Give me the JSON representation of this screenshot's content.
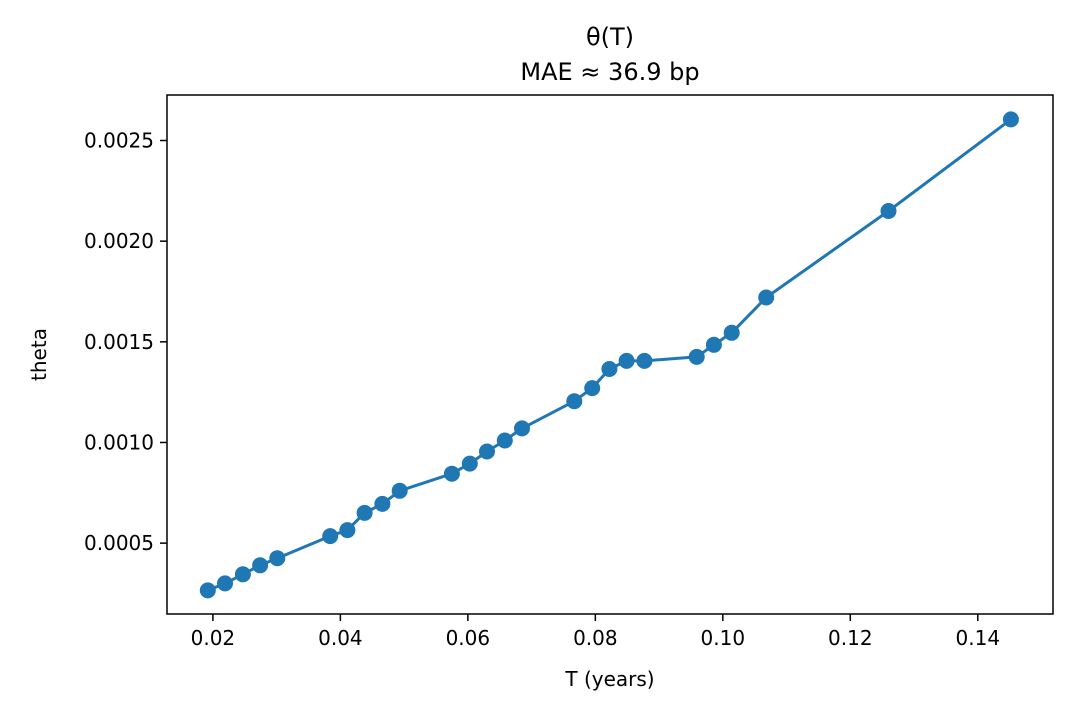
{
  "chart_data": {
    "type": "line",
    "title": "θ(T)",
    "subtitle": "MAE ≈ 36.9 bp",
    "xlabel": "T (years)",
    "ylabel": "theta",
    "xlim": [
      0.0128,
      0.1518
    ],
    "ylim": [
      0.000148,
      0.002726
    ],
    "xticks": [
      0.02,
      0.04,
      0.06,
      0.08,
      0.1,
      0.12,
      0.14
    ],
    "xtick_labels": [
      "0.02",
      "0.04",
      "0.06",
      "0.08",
      "0.10",
      "0.12",
      "0.14"
    ],
    "yticks": [
      0.0005,
      0.001,
      0.0015,
      0.002,
      0.0025
    ],
    "ytick_labels": [
      "0.0005",
      "0.0010",
      "0.0015",
      "0.0020",
      "0.0025"
    ],
    "grid": false,
    "color": "#1f77b4",
    "series": [
      {
        "x": [
          0.0192,
          0.0219,
          0.0247,
          0.0274,
          0.0301,
          0.0384,
          0.0411,
          0.0438,
          0.0466,
          0.0493,
          0.0575,
          0.0603,
          0.063,
          0.0658,
          0.0685,
          0.0767,
          0.0795,
          0.0822,
          0.0849,
          0.0877,
          0.0959,
          0.0986,
          0.1014,
          0.1068,
          0.126,
          0.1452
        ],
        "y": [
          0.000265,
          0.0003,
          0.000345,
          0.00039,
          0.000425,
          0.000535,
          0.000565,
          0.00065,
          0.000695,
          0.00076,
          0.000845,
          0.000895,
          0.000955,
          0.00101,
          0.00107,
          0.001205,
          0.00127,
          0.001365,
          0.001405,
          0.001405,
          0.001425,
          0.001485,
          0.001545,
          0.00172,
          0.00215,
          0.002605
        ]
      }
    ]
  }
}
